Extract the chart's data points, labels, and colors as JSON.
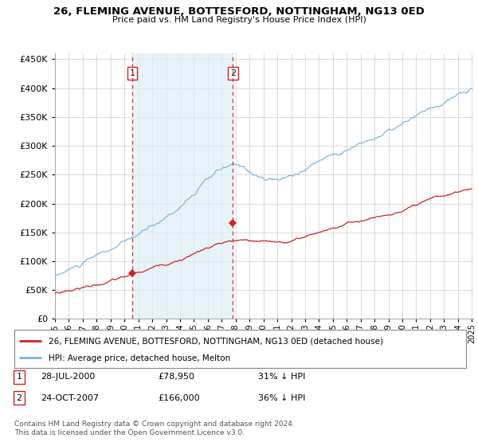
{
  "title": "26, FLEMING AVENUE, BOTTESFORD, NOTTINGHAM, NG13 0ED",
  "subtitle": "Price paid vs. HM Land Registry's House Price Index (HPI)",
  "ylim": [
    0,
    460000
  ],
  "yticks": [
    0,
    50000,
    100000,
    150000,
    200000,
    250000,
    300000,
    350000,
    400000,
    450000
  ],
  "x_start_year": 1995,
  "x_end_year": 2025,
  "hpi_color": "#7ab3d4",
  "hpi_fill_color": "#ddeef7",
  "price_color": "#cc2222",
  "vline_color": "#cc2222",
  "grid_color": "#cccccc",
  "background_color": "#ffffff",
  "legend_line1": "26, FLEMING AVENUE, BOTTESFORD, NOTTINGHAM, NG13 0ED (detached house)",
  "legend_line2": "HPI: Average price, detached house, Melton",
  "transaction1_date": "28-JUL-2000",
  "transaction1_price": "£78,950",
  "transaction1_hpi": "31% ↓ HPI",
  "transaction1_year": 2000.57,
  "transaction1_value": 78950,
  "transaction2_date": "24-OCT-2007",
  "transaction2_price": "£166,000",
  "transaction2_hpi": "36% ↓ HPI",
  "transaction2_year": 2007.8,
  "transaction2_value": 166000,
  "footnote1": "Contains HM Land Registry data © Crown copyright and database right 2024.",
  "footnote2": "This data is licensed under the Open Government Licence v3.0."
}
